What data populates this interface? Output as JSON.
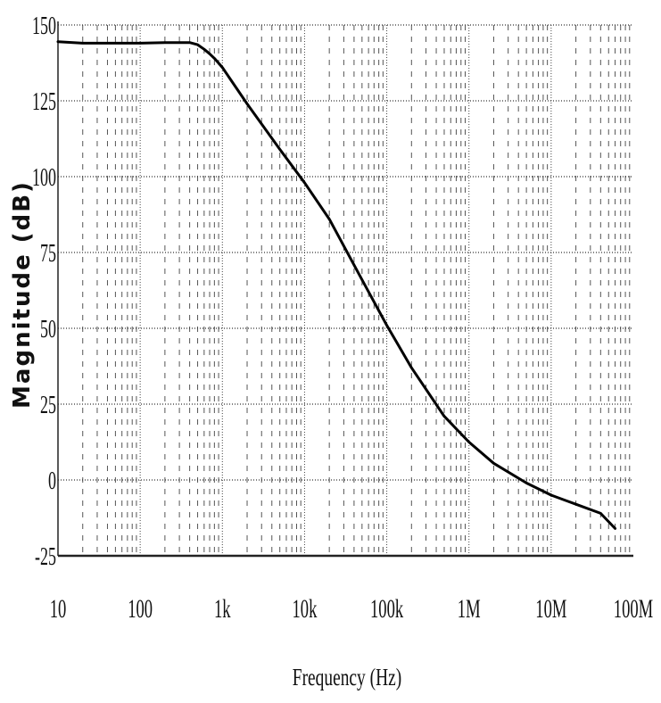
{
  "chart_data": {
    "type": "line",
    "title": "",
    "xlabel": "Frequency (Hz)",
    "ylabel": "Magnitude (dB)",
    "xscale": "log",
    "xlim": [
      10,
      100000000
    ],
    "ylim": [
      -25,
      150
    ],
    "grid": true,
    "x_tick_labels": [
      "10",
      "100",
      "1k",
      "10k",
      "100k",
      "1M",
      "10M",
      "100M"
    ],
    "y_tick_labels": [
      "150",
      "125",
      "100",
      "75",
      "50",
      "25",
      "0",
      "-25"
    ],
    "series": [
      {
        "color": "#000000",
        "x": [
          10,
          20,
          50,
          100,
          200,
          400,
          500,
          600,
          700,
          800,
          1000,
          2000,
          5000,
          10000,
          20000,
          50000,
          100000,
          200000,
          500000,
          1000000,
          2000000,
          5000000,
          10000000,
          20000000,
          40000000,
          60000000
        ],
        "y": [
          144.5,
          144,
          144,
          144,
          144.2,
          144.2,
          143.5,
          142,
          140.5,
          139,
          136,
          124,
          109,
          98,
          86,
          66,
          51,
          37,
          21,
          12.5,
          5.5,
          -1,
          -5,
          -8,
          -11,
          -16
        ]
      }
    ]
  }
}
